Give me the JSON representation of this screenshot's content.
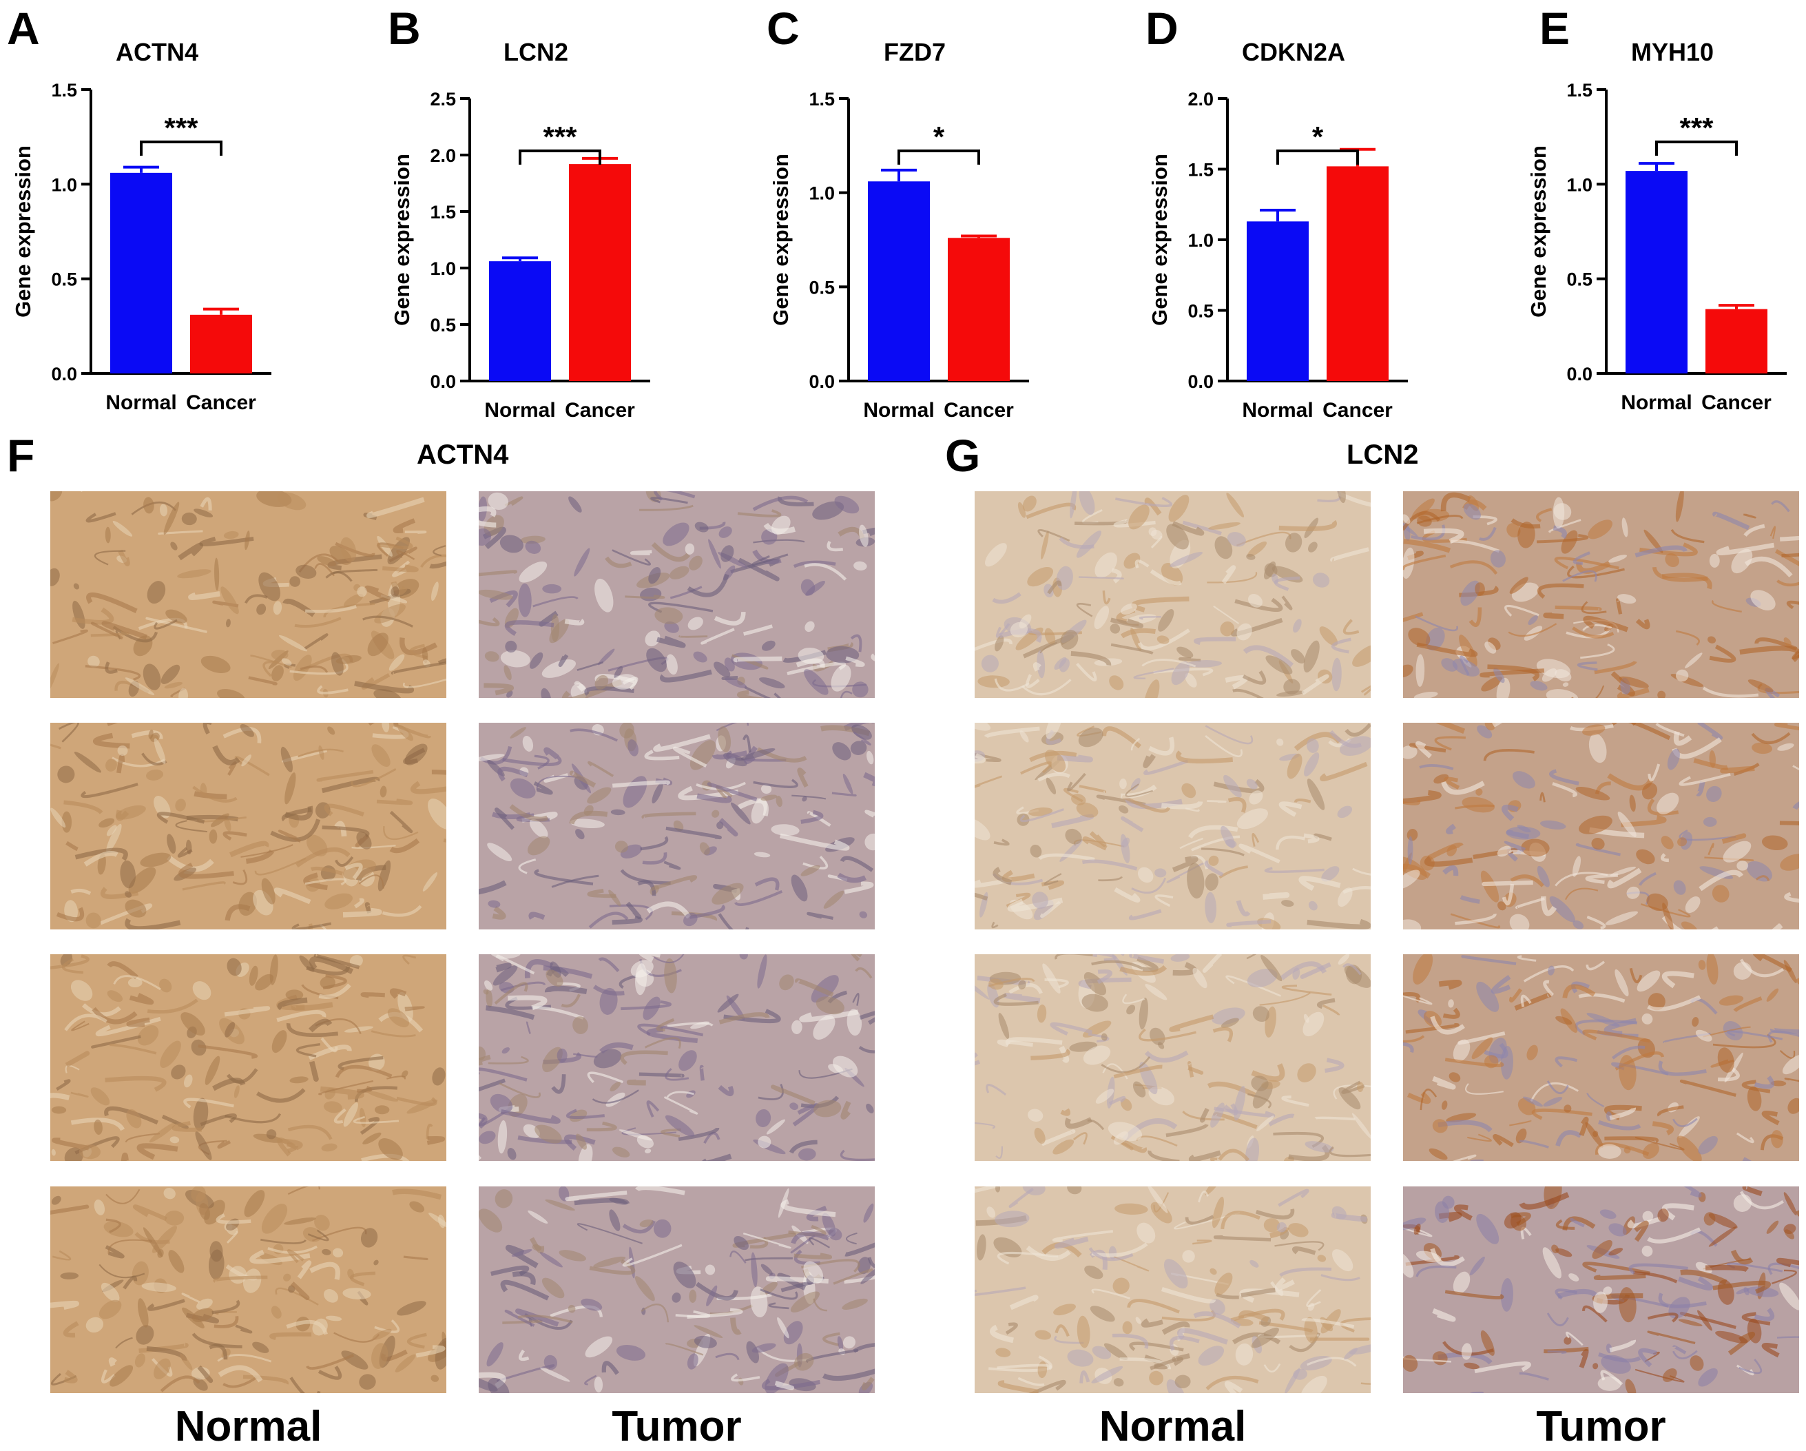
{
  "panel_letters": [
    "A",
    "B",
    "C",
    "D",
    "E",
    "F",
    "G"
  ],
  "colors": {
    "normal": "#0a0af5",
    "cancer": "#f50a0a",
    "normal_stain": "#c79a66",
    "tumor_stain": "#9e8aa6"
  },
  "y_axis_label": "Gene expression",
  "chart_data": [
    {
      "type": "bar",
      "title": "ACTN4",
      "ylabel": "Gene expression",
      "categories": [
        "Normal",
        "Cancer"
      ],
      "values": [
        1.06,
        0.31
      ],
      "errors": [
        0.03,
        0.03
      ],
      "ylim": [
        0,
        1.5
      ],
      "yticks": [
        "0.0",
        "0.5",
        "1.0",
        "1.5"
      ],
      "significance": "***"
    },
    {
      "type": "bar",
      "title": "LCN2",
      "ylabel": "Gene expression",
      "categories": [
        "Normal",
        "Cancer"
      ],
      "values": [
        1.06,
        1.92
      ],
      "errors": [
        0.03,
        0.05
      ],
      "ylim": [
        0,
        2.5
      ],
      "yticks": [
        "0.0",
        "0.5",
        "1.0",
        "1.5",
        "2.0",
        "2.5"
      ],
      "significance": "***"
    },
    {
      "type": "bar",
      "title": "FZD7",
      "ylabel": "Gene expression",
      "categories": [
        "Normal",
        "Cancer"
      ],
      "values": [
        1.06,
        0.76
      ],
      "errors": [
        0.06,
        0.01
      ],
      "ylim": [
        0,
        1.5
      ],
      "yticks": [
        "0.0",
        "0.5",
        "1.0",
        "1.5"
      ],
      "significance": "*"
    },
    {
      "type": "bar",
      "title": "CDKN2A",
      "ylabel": "Gene expression",
      "categories": [
        "Normal",
        "Cancer"
      ],
      "values": [
        1.13,
        1.52
      ],
      "errors": [
        0.08,
        0.12
      ],
      "ylim": [
        0,
        2.0
      ],
      "yticks": [
        "0.0",
        "0.5",
        "1.0",
        "1.5",
        "2.0"
      ],
      "significance": "*"
    },
    {
      "type": "bar",
      "title": "MYH10",
      "ylabel": "Gene expression",
      "categories": [
        "Normal",
        "Cancer"
      ],
      "values": [
        1.07,
        0.34
      ],
      "errors": [
        0.04,
        0.02
      ],
      "ylim": [
        0,
        1.5
      ],
      "yticks": [
        "0.0",
        "0.5",
        "1.0",
        "1.5"
      ],
      "significance": "***"
    }
  ],
  "ihc": {
    "left": {
      "title": "ACTN4",
      "columns": [
        "Normal",
        "Tumor"
      ]
    },
    "right": {
      "title": "LCN2",
      "columns": [
        "Normal",
        "Tumor"
      ]
    }
  }
}
